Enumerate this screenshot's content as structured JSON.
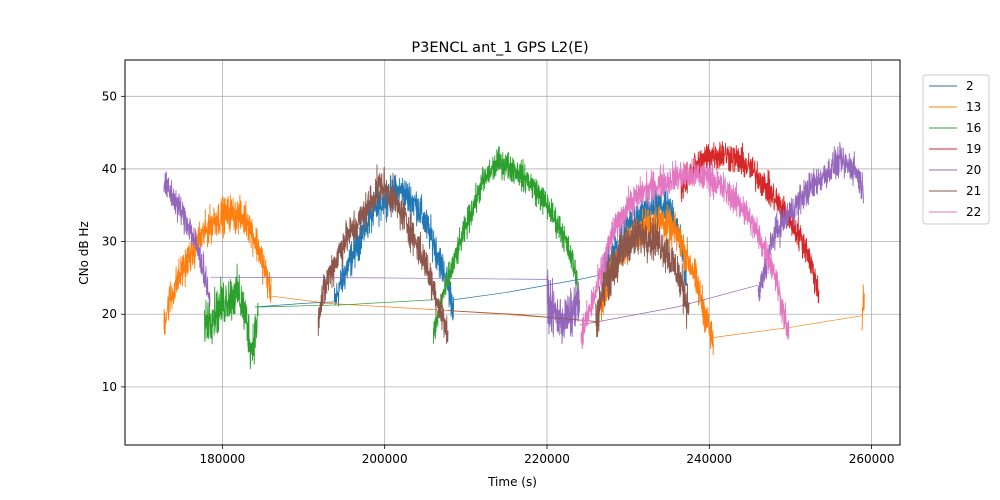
{
  "chart_data": {
    "type": "line",
    "title": "P3ENCL ant_1 GPS L2(E)",
    "xlabel": "Time (s)",
    "ylabel": "CNo dB Hz",
    "xlim": [
      168000,
      263500
    ],
    "ylim": [
      2,
      55
    ],
    "xticks": [
      180000,
      200000,
      220000,
      240000,
      260000
    ],
    "yticks": [
      10,
      20,
      30,
      40,
      50
    ],
    "grid": true,
    "legend_position": "outside-right-top",
    "series": [
      {
        "name": "2",
        "color": "#1f77b4",
        "segments": [
          {
            "x": [
              184000,
              190000,
              193800
            ],
            "y": [
              21.0,
              21.5,
              21.7
            ],
            "noise": 0
          },
          {
            "x": [
              193800,
              194500,
              196000,
              198000,
              200000,
              202000,
              204000,
              206000,
              207500,
              208500
            ],
            "y": [
              21.5,
              24,
              28,
              33,
              36,
              37,
              35,
              30,
              25,
              21
            ],
            "noise": 1.5
          },
          {
            "x": [
              208500,
              215000,
              224000,
              227000
            ],
            "y": [
              22,
              23,
              24.8,
              25.5
            ],
            "noise": 0
          },
          {
            "x": [
              227000,
              228500,
              230000,
              232000,
              234000,
              235500,
              236500,
              237200
            ],
            "y": [
              26,
              29,
              32,
              34,
              35,
              34,
              30,
              24
            ],
            "noise": 1.5
          }
        ]
      },
      {
        "name": "13",
        "color": "#ff7f0e",
        "segments": [
          {
            "x": [
              172800,
              173500,
              175000,
              177000,
              179000,
              181000,
              183000,
              184500,
              186000
            ],
            "y": [
              19,
              22,
              26,
              30,
              33,
              34,
              33,
              29,
              23
            ],
            "noise": 1.5
          },
          {
            "x": [
              186000,
              193000,
              208000,
              221000,
              226000
            ],
            "y": [
              22.5,
              21.5,
              20.5,
              19.5,
              19
            ],
            "noise": 0
          },
          {
            "x": [
              226000,
              228000,
              230000,
              232000,
              234000,
              236000,
              238000,
              239500,
              240500
            ],
            "y": [
              19,
              26,
              30,
              32,
              33,
              31,
              26,
              20,
              16
            ],
            "noise": 1.5
          },
          {
            "x": [
              240500,
              250000,
              258800
            ],
            "y": [
              16.8,
              18.2,
              19.8
            ],
            "noise": 0
          },
          {
            "x": [
              258800,
              259000,
              259100
            ],
            "y": [
              18,
              22,
              20
            ],
            "noise": 1.5
          }
        ]
      },
      {
        "name": "16",
        "color": "#2ca02c",
        "segments": [
          {
            "x": [
              177800,
              179000,
              180500,
              182000,
              183000,
              183600,
              184400
            ],
            "y": [
              19,
              20,
              22,
              23,
              19,
              15,
              20
            ],
            "noise": 2.0
          },
          {
            "x": [
              184400,
              195000,
              206000
            ],
            "y": [
              21,
              21.3,
              22
            ],
            "noise": 0
          },
          {
            "x": [
              206000,
              207000,
              208500,
              210000,
              212000,
              214000,
              216000,
              218000,
              220000,
              222000,
              223500,
              224000
            ],
            "y": [
              17,
              22,
              27,
              32,
              38,
              41,
              40,
              38,
              35,
              31,
              26,
              22
            ],
            "noise": 1.2
          }
        ]
      },
      {
        "name": "19",
        "color": "#d62728",
        "segments": [
          {
            "x": [
              236500,
              238000,
              240000,
              242000,
              244000,
              246000,
              248000,
              250000,
              252000,
              253500
            ],
            "y": [
              37,
              40,
              42,
              42,
              41,
              39,
              36,
              33,
              29,
              23
            ],
            "noise": 1.3
          }
        ]
      },
      {
        "name": "20",
        "color": "#9467bd",
        "segments": [
          {
            "x": [
              172800,
              174000,
              176000,
              177500,
              178500
            ],
            "y": [
              38,
              36,
              32,
              27,
              22
            ],
            "noise": 1.3
          },
          {
            "x": [
              178500,
              200000,
              220000
            ],
            "y": [
              25.1,
              25.0,
              24.8
            ],
            "noise": 0
          },
          {
            "x": [
              220000,
              221000,
              222000,
              223000,
              224000
            ],
            "y": [
              22,
              20,
              19,
              20,
              22
            ],
            "noise": 2.0
          },
          {
            "x": [
              224000,
              236000,
              246000
            ],
            "y": [
              18.5,
              21,
              24
            ],
            "noise": 0
          },
          {
            "x": [
              246000,
              247000,
              248000,
              250000,
              252000,
              254000,
              256000,
              258000,
              259000
            ],
            "y": [
              22,
              27,
              31,
              34,
              37,
              39,
              41,
              40,
              37
            ],
            "noise": 1.3
          }
        ]
      },
      {
        "name": "21",
        "color": "#8c564b",
        "segments": [
          {
            "x": [
              191800,
              193000,
              195000,
              197000,
              198500,
              199500,
              201000,
              203000,
              205000,
              206500,
              207800
            ],
            "y": [
              20,
              25,
              30,
              33,
              36,
              38,
              36,
              32,
              27,
              22,
              17
            ],
            "noise": 1.5
          },
          {
            "x": [
              207800,
              216000,
              226000
            ],
            "y": [
              20.5,
              20,
              19
            ],
            "noise": 0
          },
          {
            "x": [
              226000,
              227000,
              228500,
              230000,
              232000,
              234000,
              236000,
              237500
            ],
            "y": [
              19,
              24,
              27,
              30,
              31,
              30,
              26,
              21
            ],
            "noise": 1.8
          }
        ]
      },
      {
        "name": "22",
        "color": "#e377c2",
        "segments": [
          {
            "x": [
              224200,
              226000,
              228000,
              230000,
              232000,
              234000,
              236000,
              238000,
              240000,
              242000,
              244000,
              246000,
              248000,
              249800
            ],
            "y": [
              17,
              23,
              31,
              35,
              37,
              38,
              39,
              39,
              39,
              37,
              35,
              31,
              26,
              17
            ],
            "noise": 1.3
          }
        ]
      }
    ]
  }
}
